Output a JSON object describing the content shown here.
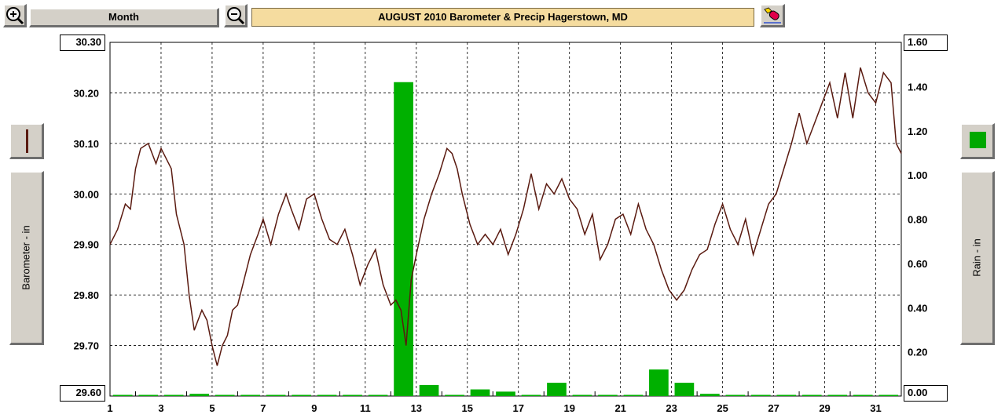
{
  "toolbar": {
    "zoom_in_icon": "zoom-in-icon",
    "zoom_out_icon": "zoom-out-icon",
    "period_label": "Month",
    "chart_title": "AUGUST  2010     Barometer & Precip     Hagerstown, MD",
    "eraser_icon": "eraser-icon"
  },
  "left_panel": {
    "series_label": "Barometer - in",
    "swatch_color": "#5a1a10"
  },
  "right_panel": {
    "series_label": "Rain - in",
    "swatch_color": "#00a800"
  },
  "colors": {
    "pressure_line": "#5a1a10",
    "rain_bar": "#00b000"
  },
  "chart_data": {
    "type": "line+bar",
    "title": "AUGUST  2010     Barometer & Precip     Hagerstown, MD",
    "xlim": [
      1,
      32
    ],
    "x_ticks": [
      1,
      3,
      5,
      7,
      9,
      11,
      13,
      15,
      17,
      19,
      21,
      23,
      25,
      27,
      29,
      31
    ],
    "y_left": {
      "label": "Barometer - in",
      "lim": [
        29.6,
        30.3
      ],
      "ticks": [
        "30.30",
        "30.20",
        "30.10",
        "30.00",
        "29.90",
        "29.80",
        "29.70",
        "29.60"
      ]
    },
    "y_right": {
      "label": "Rain - in",
      "lim": [
        0.0,
        1.6
      ],
      "ticks": [
        "1.60",
        "1.40",
        "1.20",
        "1.00",
        "0.80",
        "0.60",
        "0.40",
        "0.20",
        "0.00"
      ]
    },
    "grid": true,
    "barometer": {
      "x": [
        1.0,
        1.3,
        1.6,
        1.8,
        2.0,
        2.2,
        2.5,
        2.8,
        3.0,
        3.2,
        3.4,
        3.6,
        3.9,
        4.1,
        4.3,
        4.6,
        4.8,
        5.0,
        5.2,
        5.4,
        5.6,
        5.8,
        6.0,
        6.2,
        6.5,
        6.8,
        7.0,
        7.3,
        7.6,
        7.9,
        8.1,
        8.4,
        8.7,
        9.0,
        9.3,
        9.6,
        9.9,
        10.2,
        10.5,
        10.8,
        11.1,
        11.4,
        11.7,
        12.0,
        12.2,
        12.4,
        12.6,
        12.8,
        13.0,
        13.3,
        13.6,
        13.9,
        14.2,
        14.4,
        14.6,
        14.8,
        15.1,
        15.4,
        15.7,
        16.0,
        16.3,
        16.6,
        16.9,
        17.2,
        17.5,
        17.8,
        18.1,
        18.4,
        18.7,
        19.0,
        19.3,
        19.6,
        19.9,
        20.2,
        20.5,
        20.8,
        21.1,
        21.4,
        21.7,
        22.0,
        22.3,
        22.6,
        22.9,
        23.2,
        23.5,
        23.8,
        24.1,
        24.4,
        24.7,
        25.0,
        25.3,
        25.6,
        25.9,
        26.2,
        26.5,
        26.8,
        27.1,
        27.4,
        27.7,
        28.0,
        28.3,
        28.6,
        28.9,
        29.2,
        29.5,
        29.8,
        30.1,
        30.4,
        30.7,
        31.0,
        31.3,
        31.6,
        31.8,
        32.0
      ],
      "y": [
        29.9,
        29.93,
        29.98,
        29.97,
        30.05,
        30.09,
        30.1,
        30.06,
        30.09,
        30.07,
        30.05,
        29.96,
        29.9,
        29.8,
        29.73,
        29.77,
        29.75,
        29.7,
        29.66,
        29.7,
        29.72,
        29.77,
        29.78,
        29.82,
        29.88,
        29.92,
        29.95,
        29.9,
        29.96,
        30.0,
        29.97,
        29.93,
        29.99,
        30.0,
        29.95,
        29.91,
        29.9,
        29.93,
        29.88,
        29.82,
        29.86,
        29.89,
        29.82,
        29.78,
        29.79,
        29.77,
        29.7,
        29.83,
        29.88,
        29.95,
        30.0,
        30.04,
        30.09,
        30.08,
        30.05,
        30.0,
        29.94,
        29.9,
        29.92,
        29.9,
        29.93,
        29.88,
        29.92,
        29.97,
        30.04,
        29.97,
        30.02,
        30.0,
        30.03,
        29.99,
        29.97,
        29.92,
        29.96,
        29.87,
        29.9,
        29.95,
        29.96,
        29.92,
        29.98,
        29.93,
        29.9,
        29.85,
        29.81,
        29.79,
        29.81,
        29.85,
        29.88,
        29.89,
        29.94,
        29.98,
        29.93,
        29.9,
        29.95,
        29.88,
        29.93,
        29.98,
        30.0,
        30.05,
        30.1,
        30.16,
        30.1,
        30.14,
        30.18,
        30.22,
        30.15,
        30.24,
        30.15,
        30.25,
        30.2,
        30.18,
        30.24,
        30.22,
        30.1,
        30.08
      ]
    },
    "rain": {
      "x": [
        1,
        2,
        3,
        4,
        5,
        6,
        7,
        8,
        9,
        10,
        11,
        12,
        13,
        14,
        15,
        16,
        17,
        18,
        19,
        20,
        21,
        22,
        23,
        24,
        25,
        26,
        27,
        28,
        29,
        30,
        31
      ],
      "y": [
        0.0,
        0.0,
        0.0,
        0.01,
        0.0,
        0.0,
        0.0,
        0.0,
        0.0,
        0.0,
        0.0,
        1.42,
        0.05,
        0.0,
        0.03,
        0.02,
        0.0,
        0.06,
        0.0,
        0.0,
        0.0,
        0.12,
        0.06,
        0.01,
        0.0,
        0.0,
        0.0,
        0.0,
        0.0,
        0.0,
        0.0
      ]
    }
  }
}
